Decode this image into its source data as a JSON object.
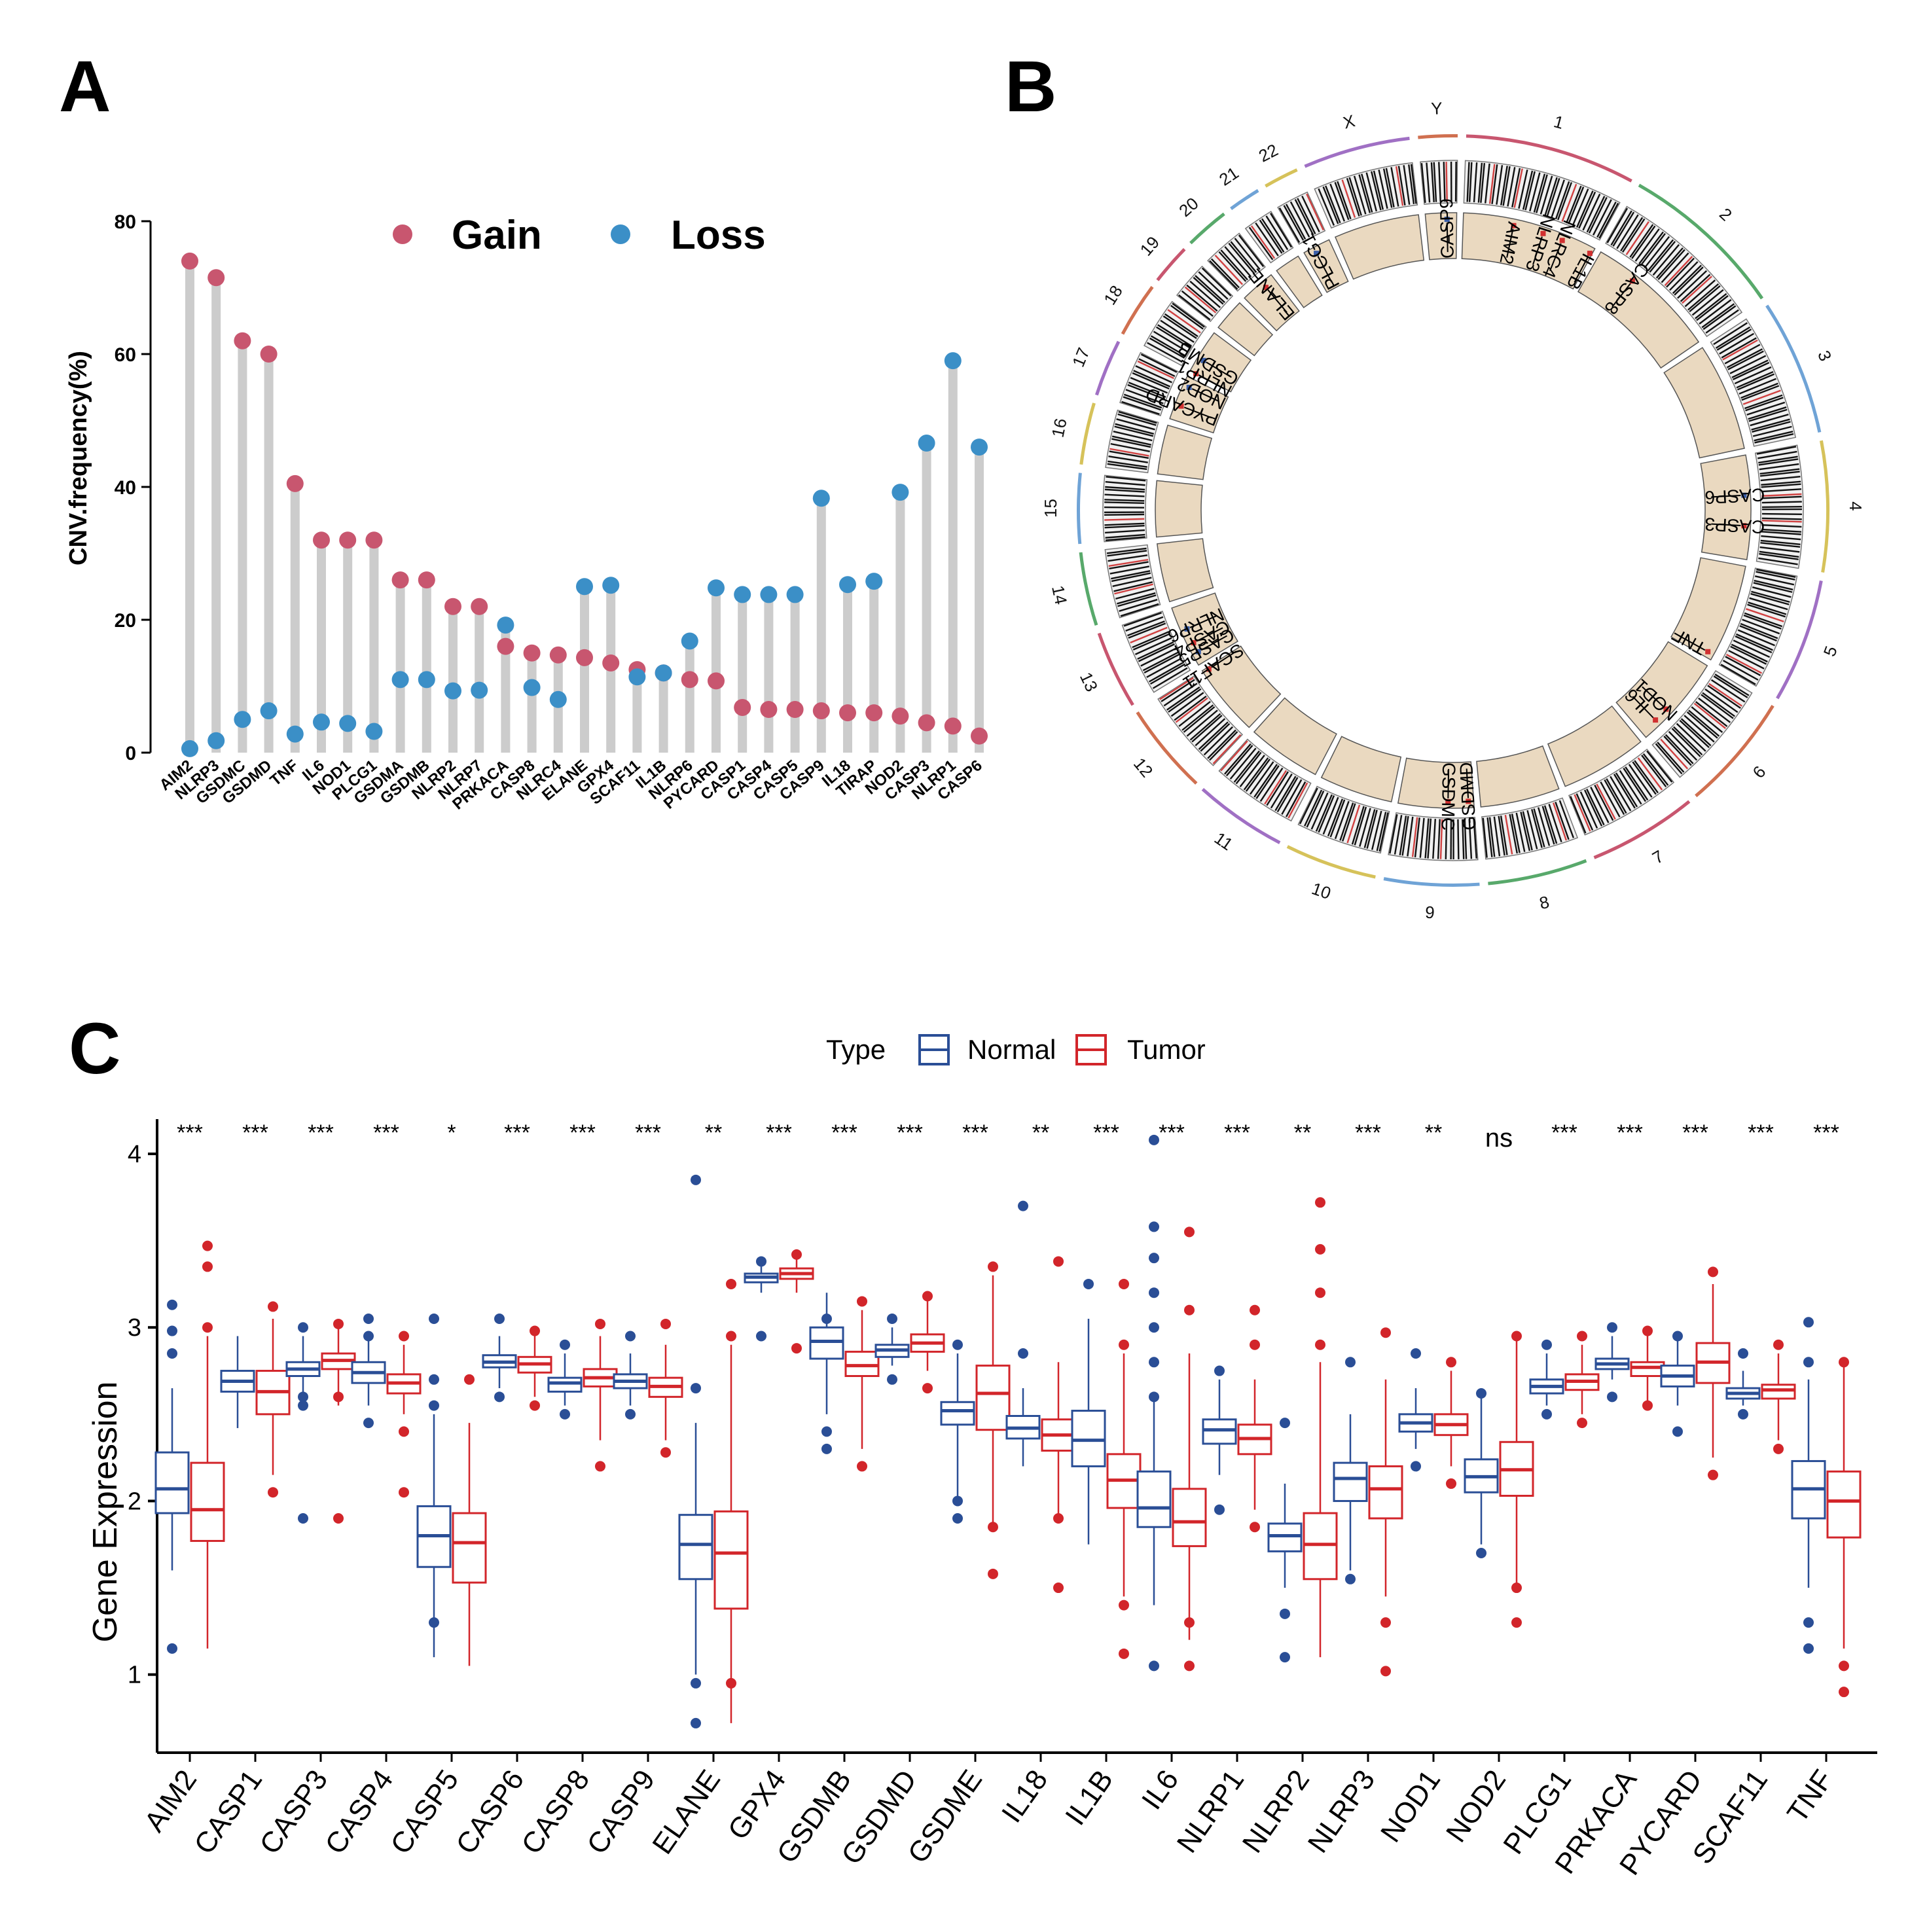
{
  "panels": {
    "a": "A",
    "b": "B",
    "c": "C"
  },
  "chart_data": [
    {
      "type": "scatter",
      "subtype": "lollipop",
      "panel": "A",
      "title": "",
      "xlabel": "",
      "ylabel": "CNV.frequency(%)",
      "ylim": [
        0,
        80
      ],
      "yticks": [
        0,
        20,
        40,
        60,
        80
      ],
      "legend": {
        "position": "top",
        "entries": [
          "Gain",
          "Loss"
        ]
      },
      "colors": {
        "gain": "#c8566f",
        "loss": "#3b8fc7",
        "stem": "#cccccc"
      },
      "categories": [
        "AIM2",
        "NLRP3",
        "GSDMC",
        "GSDMD",
        "TNF",
        "IL6",
        "NOD1",
        "PLCG1",
        "GSDMA",
        "GSDMB",
        "NLRP2",
        "NLRP7",
        "PRKACA",
        "CASP8",
        "NLRC4",
        "ELANE",
        "GPX4",
        "SCAF11",
        "IL1B",
        "NLRP6",
        "PYCARD",
        "CASP1",
        "CASP4",
        "CASP5",
        "CASP9",
        "IL18",
        "TIRAP",
        "NOD2",
        "CASP3",
        "NLRP1",
        "CASP6"
      ],
      "series": [
        {
          "name": "Gain",
          "values": [
            74,
            71.5,
            62,
            60,
            40.5,
            32,
            32,
            32,
            26,
            26,
            22,
            22,
            16,
            15,
            14.7,
            14.3,
            13.5,
            12.5,
            12,
            11,
            10.8,
            6.8,
            6.5,
            6.5,
            6.3,
            6,
            6,
            5.5,
            4.5,
            4,
            2.5
          ]
        },
        {
          "name": "Loss",
          "values": [
            0.6,
            1.8,
            5,
            6.3,
            2.8,
            4.6,
            4.4,
            3.2,
            11,
            11,
            9.3,
            9.4,
            19.2,
            9.8,
            8,
            25,
            25.2,
            11.4,
            12,
            16.8,
            24.8,
            23.8,
            23.8,
            23.8,
            38.3,
            25.3,
            25.8,
            39.2,
            46.6,
            59,
            46
          ]
        }
      ]
    },
    {
      "type": "other",
      "subtype": "circos",
      "panel": "B",
      "chromosomes": [
        "1",
        "2",
        "3",
        "4",
        "5",
        "6",
        "7",
        "8",
        "9",
        "10",
        "11",
        "12",
        "13",
        "14",
        "15",
        "16",
        "17",
        "18",
        "19",
        "20",
        "21",
        "22",
        "X",
        "Y"
      ],
      "genes": [
        "CASP9",
        "AIM2",
        "NLRP3",
        "NLRC4",
        "IL1B",
        "CASP8",
        "CASP6",
        "CASP3",
        "TNF",
        "NOD1",
        "IL6",
        "GSDMD",
        "GSDMC",
        "SCAF11",
        "CASP5",
        "CASP4",
        "NLRP6",
        "PYCARD",
        "NOD2",
        "NLRP1",
        "GSDMB",
        "ELANE",
        "PLCG1"
      ]
    },
    {
      "type": "box",
      "panel": "C",
      "title": "",
      "xlabel": "",
      "ylabel": "Gene Expression",
      "ylim": [
        0.55,
        4.2
      ],
      "yticks": [
        1,
        2,
        3,
        4
      ],
      "legend": {
        "title": "Type",
        "position": "top",
        "entries": [
          "Normal",
          "Tumor"
        ]
      },
      "colors": {
        "normal": "#2a4e96",
        "tumor": "#d2252a"
      },
      "categories": [
        "AIM2",
        "CASP1",
        "CASP3",
        "CASP4",
        "CASP5",
        "CASP6",
        "CASP8",
        "CASP9",
        "ELANE",
        "GPX4",
        "GSDMB",
        "GSDMD",
        "GSDME",
        "IL18",
        "IL1B",
        "IL6",
        "NLRP1",
        "NLRP2",
        "NLRP3",
        "NOD1",
        "NOD2",
        "PLCG1",
        "PRKACA",
        "PYCARD",
        "SCAF11",
        "TNF"
      ],
      "significance": [
        "***",
        "***",
        "***",
        "***",
        "*",
        "***",
        "***",
        "***",
        "**",
        "***",
        "***",
        "***",
        "***",
        "**",
        "***",
        "***",
        "***",
        "**",
        "***",
        "**",
        "ns",
        "***",
        "***",
        "***",
        "***",
        "***"
      ],
      "series": [
        {
          "name": "Normal",
          "boxes": [
            [
              1.6,
              1.93,
              2.07,
              2.28,
              2.65
            ],
            [
              2.42,
              2.63,
              2.69,
              2.75,
              2.95
            ],
            [
              2.6,
              2.72,
              2.76,
              2.8,
              2.95
            ],
            [
              2.55,
              2.68,
              2.74,
              2.8,
              2.95
            ],
            [
              1.1,
              1.62,
              1.8,
              1.97,
              2.5
            ],
            [
              2.65,
              2.77,
              2.8,
              2.84,
              2.95
            ],
            [
              2.55,
              2.63,
              2.68,
              2.71,
              2.85
            ],
            [
              2.55,
              2.65,
              2.69,
              2.73,
              2.85
            ],
            [
              1.0,
              1.55,
              1.75,
              1.92,
              2.45
            ],
            [
              3.2,
              3.26,
              3.29,
              3.31,
              3.35
            ],
            [
              2.5,
              2.82,
              2.92,
              3.0,
              3.2
            ],
            [
              2.78,
              2.83,
              2.87,
              2.9,
              3.0
            ],
            [
              2.0,
              2.44,
              2.52,
              2.57,
              2.85
            ],
            [
              2.2,
              2.36,
              2.42,
              2.49,
              2.65
            ],
            [
              1.75,
              2.2,
              2.35,
              2.52,
              3.05
            ],
            [
              1.4,
              1.85,
              1.96,
              2.17,
              2.6
            ],
            [
              2.15,
              2.33,
              2.41,
              2.47,
              2.7
            ],
            [
              1.5,
              1.71,
              1.8,
              1.87,
              2.1
            ],
            [
              1.6,
              2.0,
              2.13,
              2.22,
              2.5
            ],
            [
              2.3,
              2.4,
              2.45,
              2.5,
              2.65
            ],
            [
              1.75,
              2.05,
              2.14,
              2.24,
              2.6
            ],
            [
              2.55,
              2.62,
              2.66,
              2.7,
              2.85
            ],
            [
              2.7,
              2.76,
              2.79,
              2.82,
              2.95
            ],
            [
              2.55,
              2.66,
              2.72,
              2.78,
              2.95
            ],
            [
              2.55,
              2.59,
              2.62,
              2.65,
              2.75
            ],
            [
              1.5,
              1.9,
              2.07,
              2.23,
              2.7
            ]
          ],
          "outliers": [
            [
              1.15,
              2.85,
              2.98,
              3.13
            ],
            [],
            [
              1.9,
              2.55,
              2.6,
              3.0
            ],
            [
              2.45,
              2.95,
              3.05
            ],
            [
              1.3,
              2.55,
              2.7,
              3.05
            ],
            [
              2.6,
              3.05
            ],
            [
              2.5,
              2.9
            ],
            [
              2.5,
              2.95
            ],
            [
              0.72,
              0.95,
              2.65,
              3.85
            ],
            [
              2.95,
              3.38
            ],
            [
              2.3,
              2.4,
              3.05
            ],
            [
              2.7,
              3.05
            ],
            [
              1.9,
              2.0,
              2.9
            ],
            [
              2.85,
              3.7
            ],
            [
              3.25
            ],
            [
              1.05,
              2.6,
              2.8,
              3.0,
              3.2,
              3.4,
              3.58,
              4.08
            ],
            [
              1.95,
              2.75
            ],
            [
              1.1,
              1.35,
              2.45
            ],
            [
              1.55,
              2.8
            ],
            [
              2.2,
              2.85
            ],
            [
              1.7,
              2.62
            ],
            [
              2.5,
              2.9
            ],
            [
              2.6,
              3.0
            ],
            [
              2.4,
              2.95
            ],
            [
              2.5,
              2.85
            ],
            [
              1.15,
              1.3,
              2.8,
              3.03
            ]
          ]
        },
        {
          "name": "Tumor",
          "boxes": [
            [
              1.15,
              1.77,
              1.95,
              2.22,
              2.95
            ],
            [
              2.15,
              2.5,
              2.63,
              2.75,
              3.05
            ],
            [
              2.55,
              2.76,
              2.81,
              2.85,
              3.0
            ],
            [
              2.5,
              2.62,
              2.68,
              2.73,
              2.9
            ],
            [
              1.05,
              1.53,
              1.76,
              1.93,
              2.45
            ],
            [
              2.6,
              2.74,
              2.79,
              2.83,
              2.95
            ],
            [
              2.35,
              2.66,
              2.71,
              2.76,
              2.95
            ],
            [
              2.35,
              2.6,
              2.66,
              2.71,
              2.9
            ],
            [
              0.72,
              1.38,
              1.7,
              1.94,
              2.9
            ],
            [
              3.2,
              3.28,
              3.31,
              3.34,
              3.45
            ],
            [
              2.3,
              2.72,
              2.78,
              2.86,
              3.1
            ],
            [
              2.75,
              2.86,
              2.91,
              2.96,
              3.15
            ],
            [
              1.85,
              2.41,
              2.62,
              2.78,
              3.3
            ],
            [
              1.9,
              2.29,
              2.38,
              2.47,
              2.8
            ],
            [
              1.45,
              1.96,
              2.12,
              2.27,
              2.85
            ],
            [
              1.2,
              1.74,
              1.88,
              2.07,
              2.85
            ],
            [
              1.95,
              2.27,
              2.36,
              2.44,
              2.7
            ],
            [
              1.1,
              1.55,
              1.75,
              1.93,
              2.8
            ],
            [
              1.45,
              1.9,
              2.07,
              2.2,
              2.7
            ],
            [
              2.2,
              2.38,
              2.44,
              2.5,
              2.75
            ],
            [
              1.5,
              2.03,
              2.18,
              2.34,
              2.95
            ],
            [
              2.5,
              2.64,
              2.69,
              2.73,
              2.9
            ],
            [
              2.55,
              2.72,
              2.77,
              2.8,
              2.95
            ],
            [
              2.25,
              2.68,
              2.8,
              2.91,
              3.25
            ],
            [
              2.35,
              2.59,
              2.64,
              2.67,
              2.85
            ],
            [
              1.15,
              1.79,
              2.0,
              2.17,
              2.8
            ]
          ],
          "outliers": [
            [
              3.0,
              3.35,
              3.47
            ],
            [
              2.05,
              3.12
            ],
            [
              1.9,
              2.6,
              3.02
            ],
            [
              2.05,
              2.4,
              2.95
            ],
            [
              2.7
            ],
            [
              2.55,
              2.98
            ],
            [
              2.2,
              3.02
            ],
            [
              2.28,
              3.02
            ],
            [
              0.95,
              2.95,
              3.25
            ],
            [
              2.88,
              3.42
            ],
            [
              2.2,
              3.15
            ],
            [
              2.65,
              3.18
            ],
            [
              1.58,
              1.85,
              3.35
            ],
            [
              1.5,
              1.9,
              3.38
            ],
            [
              1.12,
              1.4,
              2.9,
              3.25
            ],
            [
              1.05,
              1.3,
              3.1,
              3.55
            ],
            [
              1.85,
              2.9,
              3.1
            ],
            [
              2.9,
              3.2,
              3.45,
              3.72
            ],
            [
              1.02,
              1.3,
              2.97
            ],
            [
              2.1,
              2.8
            ],
            [
              1.3,
              1.5,
              2.95
            ],
            [
              2.45,
              2.95
            ],
            [
              2.55,
              2.98
            ],
            [
              2.15,
              3.32
            ],
            [
              2.3,
              2.9
            ],
            [
              0.9,
              1.05,
              2.8
            ]
          ]
        }
      ]
    }
  ]
}
